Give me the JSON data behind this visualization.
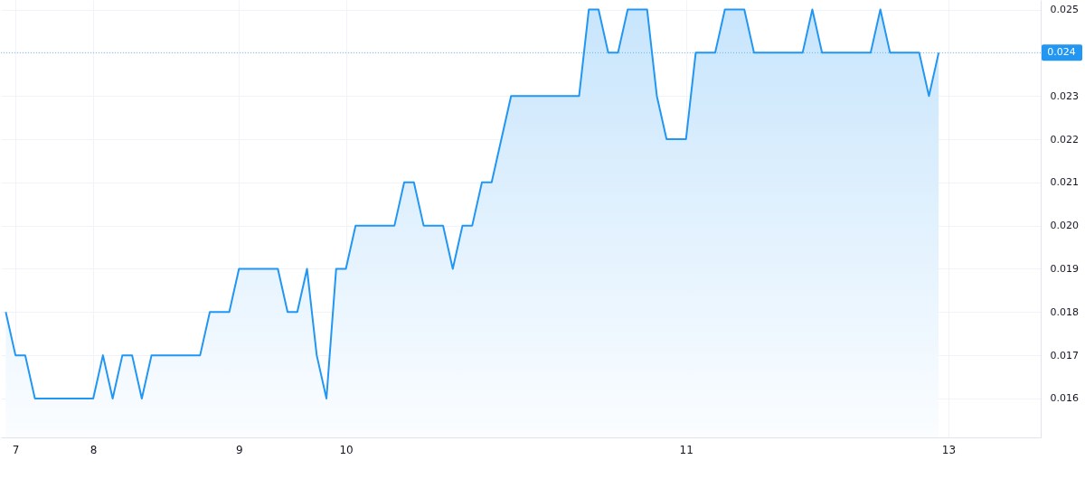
{
  "chart_data": {
    "type": "area",
    "categories": [
      null,
      "7",
      null,
      null,
      null,
      null,
      null,
      null,
      null,
      "8",
      null,
      null,
      null,
      null,
      null,
      null,
      null,
      null,
      null,
      null,
      null,
      null,
      null,
      null,
      "9",
      null,
      null,
      null,
      null,
      null,
      null,
      null,
      null,
      null,
      null,
      "10",
      null,
      null,
      null,
      null,
      null,
      null,
      null,
      null,
      null,
      null,
      null,
      null,
      null,
      null,
      null,
      null,
      null,
      null,
      null,
      null,
      null,
      null,
      null,
      null,
      null,
      null,
      null,
      null,
      null,
      null,
      null,
      null,
      null,
      null,
      "11",
      null,
      null,
      null,
      null,
      null,
      null,
      null,
      null,
      null,
      null,
      null,
      null,
      null,
      null,
      null,
      null,
      null,
      null,
      null,
      null,
      null,
      null,
      null,
      null,
      null,
      null,
      "13",
      null,
      null,
      null,
      null,
      null,
      null,
      null,
      null,
      null
    ],
    "series": [
      {
        "color": "#2196f3",
        "values": [
          0.018,
          0.017,
          0.017,
          0.016,
          0.016,
          0.016,
          0.016,
          0.016,
          0.016,
          0.016,
          0.017,
          0.016,
          0.017,
          0.017,
          0.016,
          0.017,
          0.017,
          0.017,
          0.017,
          0.017,
          0.017,
          0.018,
          0.018,
          0.018,
          0.019,
          0.019,
          0.019,
          0.019,
          0.019,
          0.018,
          0.018,
          0.019,
          0.017,
          0.016,
          0.019,
          0.019,
          0.02,
          0.02,
          0.02,
          0.02,
          0.02,
          0.021,
          0.021,
          0.02,
          0.02,
          0.02,
          0.019,
          0.02,
          0.02,
          0.021,
          0.021,
          0.022,
          0.023,
          0.023,
          0.023,
          0.023,
          0.023,
          0.023,
          0.023,
          0.023,
          0.025,
          0.025,
          0.024,
          0.024,
          0.025,
          0.025,
          0.025,
          0.023,
          0.022,
          0.022,
          0.022,
          0.024,
          0.024,
          0.024,
          0.025,
          0.025,
          0.025,
          0.024,
          0.024,
          0.024,
          0.024,
          0.024,
          0.024,
          0.025,
          0.024,
          0.024,
          0.024,
          0.024,
          0.024,
          0.024,
          0.025,
          0.024,
          0.024,
          0.024,
          0.024,
          0.023,
          0.024,
          null,
          null,
          null,
          null,
          null,
          null,
          null,
          null,
          null,
          null
        ]
      }
    ],
    "ylim": [
      0.0151,
      0.02522
    ],
    "yticks": [
      0.016,
      0.017,
      0.018,
      0.019,
      {
        "value": 0.02,
        "label": "0.020"
      },
      0.021,
      0.022,
      0.023,
      0.024,
      0.025
    ],
    "grid": true,
    "line_style": "solid",
    "ref_lines": [
      {
        "axis": "y",
        "value": 0.024,
        "label": "0.024",
        "color": "#2196f3",
        "line_style": "dotted"
      }
    ]
  }
}
